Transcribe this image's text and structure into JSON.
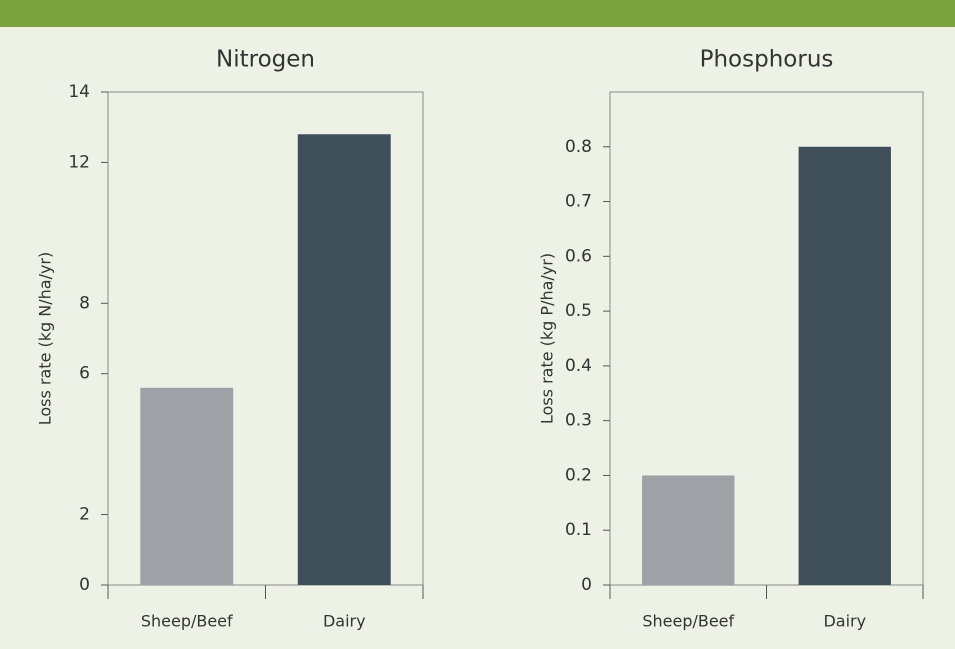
{
  "chart_data": [
    {
      "type": "bar",
      "title": "Nitrogen",
      "y_label": "Loss rate (kg N/ha/yr)",
      "categories": [
        "Sheep/Beef",
        "Dairy"
      ],
      "values": [
        5.6,
        12.8
      ],
      "colors": [
        "#9ea2a7",
        "#3e4f59"
      ],
      "ylim": [
        0,
        14
      ],
      "yticks": [
        0,
        2,
        6,
        8,
        12,
        14
      ]
    },
    {
      "type": "bar",
      "title": "Phosphorus",
      "y_label": "Loss rate (kg P/ha/yr)",
      "categories": [
        "Sheep/Beef",
        "Dairy"
      ],
      "values": [
        0.2,
        0.8
      ],
      "colors": [
        "#9ea2a7",
        "#3e4f59"
      ],
      "ylim": [
        0,
        0.9
      ],
      "yticks": [
        0,
        0.1,
        0.2,
        0.3,
        0.4,
        0.5,
        0.6,
        0.7,
        0.8
      ]
    }
  ]
}
